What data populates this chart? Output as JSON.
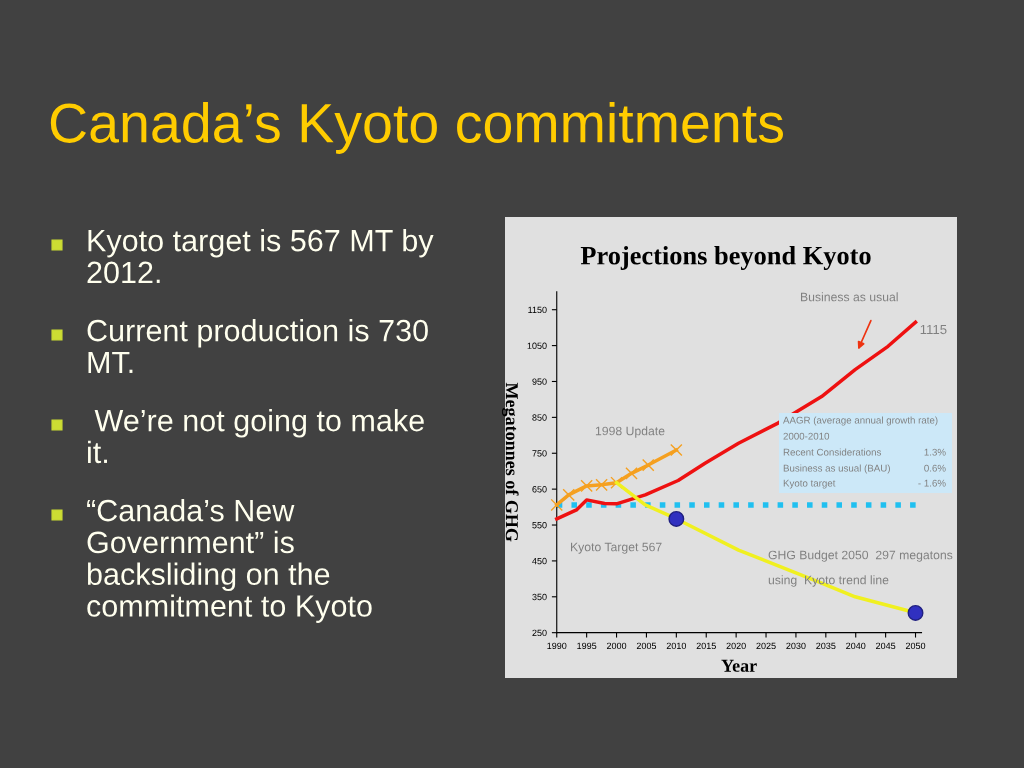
{
  "chart_data": [
    {
      "type": "other",
      "title": "Canada’s Kyoto commitments",
      "annotations": [
        "Kyoto target is 567 MT by\n2012.",
        "Current production is 730\nMT.",
        " We’re not going to make\nit.",
        "“Canada’s New\nGovernment” is\nbacksliding on the\ncommitment to Kyoto"
      ]
    },
    {
      "type": "line",
      "title": "Projections beyond Kyoto",
      "xlabel": "Year",
      "ylabel": "Megatonnes of GHG",
      "xlim": [
        1990,
        2051
      ],
      "xticks": [
        1990,
        1995,
        2000,
        2005,
        2010,
        2015,
        2020,
        2025,
        2030,
        2035,
        2040,
        2045,
        2050
      ],
      "ylim": [
        250,
        1200
      ],
      "yticks": [
        250,
        350,
        450,
        550,
        650,
        750,
        850,
        950,
        1050,
        1150
      ],
      "grid": false,
      "legend": false,
      "series": [
        {
          "color": "#ee1111",
          "x": [
            1990,
            1993.3,
            1995,
            1998,
            2000,
            2004.8,
            2010.3,
            2014.8,
            2020.4,
            2027,
            2034.3,
            2039.9,
            2045.4,
            2050
          ],
          "values": [
            567,
            592,
            620,
            610,
            609,
            634,
            674,
            722,
            778,
            834,
            908,
            983,
            1048,
            1115
          ]
        },
        {
          "color": "#f5a020",
          "marker": "cross",
          "x": [
            1990,
            1992,
            1995,
            1997.5,
            2000,
            2002.5,
            2005.3,
            2010
          ],
          "values": [
            606,
            634,
            659,
            662,
            668,
            694,
            717,
            759
          ]
        },
        {
          "color": "#f0f020",
          "x": [
            2000,
            2004.8,
            2009.8,
            2020.4,
            2026,
            2034.3,
            2039.9,
            2049.9
          ],
          "values": [
            668,
            606,
            569,
            480,
            443,
            388,
            350,
            306
          ]
        },
        {
          "type": "scatter",
          "color": "#3030c0",
          "marker": "circle",
          "x": [
            2010,
            2050
          ],
          "values": [
            567,
            305
          ]
        }
      ],
      "ref_lines": [
        {
          "axis": "y",
          "value": 606,
          "color": "#20c0f0",
          "line_style": "dotted"
        }
      ],
      "annotations": [
        "Business as usual",
        {
          "text": "1115",
          "x": 2050,
          "y": 1115
        },
        "1998 Update",
        "Kyoto Target 567",
        "GHG Budget 2050  297 megatons",
        "using  Kyoto trend line",
        "AAGR (average annual growth rate)",
        "2000-2010",
        "Recent Considerations",
        "1.3%",
        "Business as usual (BAU)",
        "0.6%",
        "Kyoto target",
        "- 1.6%"
      ]
    }
  ]
}
